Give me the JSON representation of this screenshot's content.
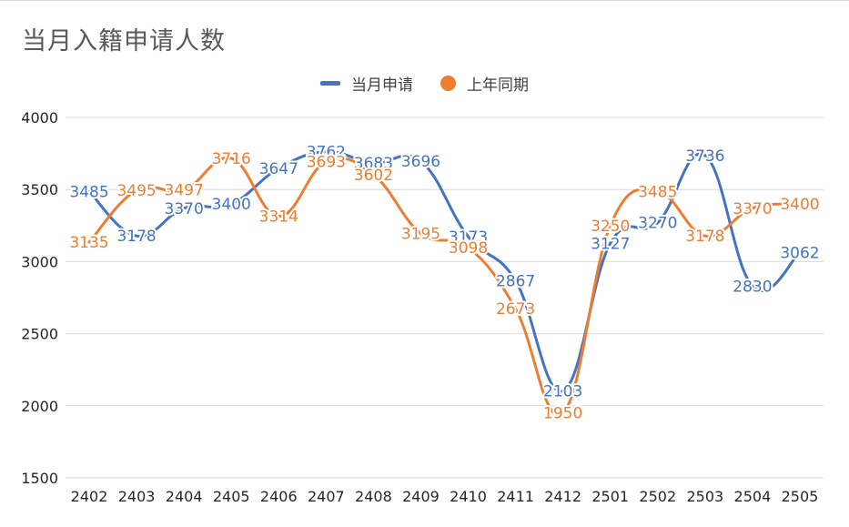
{
  "chart_data": {
    "type": "line",
    "title": "当月入籍申请人数",
    "categories": [
      "2402",
      "2403",
      "2404",
      "2405",
      "2406",
      "2407",
      "2408",
      "2409",
      "2410",
      "2411",
      "2412",
      "2501",
      "2502",
      "2503",
      "2504",
      "2505"
    ],
    "series": [
      {
        "name": "当月申请",
        "color": "#4472C4",
        "marker": "line",
        "values": [
          3485,
          3178,
          3370,
          3400,
          3647,
          3762,
          3683,
          3696,
          3173,
          2867,
          2103,
          3127,
          3270,
          3736,
          2830,
          3062
        ]
      },
      {
        "name": "上年同期",
        "color": "#ED7D31",
        "marker": "circle",
        "values": [
          3135,
          3495,
          3497,
          3716,
          3314,
          3693,
          3602,
          3195,
          3098,
          2673,
          1950,
          3250,
          3485,
          3178,
          3370,
          3400
        ]
      }
    ],
    "yticks": [
      "4000",
      "3500",
      "3000",
      "2500",
      "2000",
      "1500"
    ],
    "ylim": [
      1500,
      4000
    ],
    "grid": true,
    "legend_position": "top",
    "smooth": true
  }
}
